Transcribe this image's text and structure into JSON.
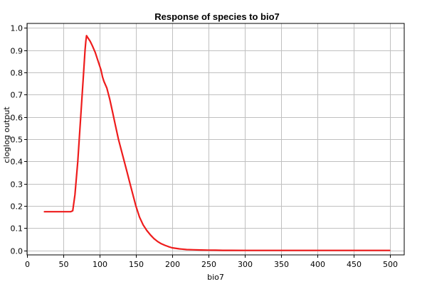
{
  "chart_data": {
    "type": "line",
    "title": "Response of species to bio7",
    "xlabel": "bio7",
    "ylabel": "cloglog output",
    "xlim": [
      0,
      520
    ],
    "ylim": [
      -0.02,
      1.02
    ],
    "x_ticks": [
      0,
      50,
      100,
      150,
      200,
      250,
      300,
      350,
      400,
      450,
      500
    ],
    "y_ticks": [
      0.0,
      0.1,
      0.2,
      0.3,
      0.4,
      0.5,
      0.6,
      0.7,
      0.8,
      0.9,
      1.0
    ],
    "x_tick_labels": [
      "0",
      "50",
      "100",
      "150",
      "200",
      "250",
      "300",
      "350",
      "400",
      "450",
      "500"
    ],
    "y_tick_labels": [
      "0.0",
      "0.1",
      "0.2",
      "0.3",
      "0.4",
      "0.5",
      "0.6",
      "0.7",
      "0.8",
      "0.9",
      "1.0"
    ],
    "grid": true,
    "series": [
      {
        "color": "#ee1c1c",
        "x": [
          24,
          30,
          40,
          50,
          60,
          63,
          66,
          70,
          74,
          78,
          80,
          81,
          82,
          84,
          87,
          90,
          94,
          98,
          102,
          104,
          106,
          110,
          114,
          118,
          122,
          126,
          130,
          134,
          138,
          142,
          146,
          150,
          155,
          160,
          165,
          170,
          175,
          180,
          185,
          190,
          195,
          200,
          210,
          220,
          230,
          240,
          250,
          260,
          270,
          280,
          300,
          350,
          400,
          450,
          500
        ],
        "y": [
          0.174,
          0.174,
          0.174,
          0.174,
          0.174,
          0.178,
          0.25,
          0.4,
          0.6,
          0.8,
          0.9,
          0.94,
          0.965,
          0.955,
          0.94,
          0.92,
          0.89,
          0.85,
          0.81,
          0.78,
          0.76,
          0.73,
          0.68,
          0.62,
          0.56,
          0.5,
          0.45,
          0.4,
          0.35,
          0.3,
          0.25,
          0.2,
          0.15,
          0.115,
          0.09,
          0.07,
          0.053,
          0.04,
          0.03,
          0.023,
          0.017,
          0.012,
          0.007,
          0.004,
          0.003,
          0.002,
          0.0015,
          0.001,
          0.0005,
          0.0003,
          0.0,
          0.0,
          0.0,
          0.0,
          0.0
        ]
      }
    ]
  }
}
